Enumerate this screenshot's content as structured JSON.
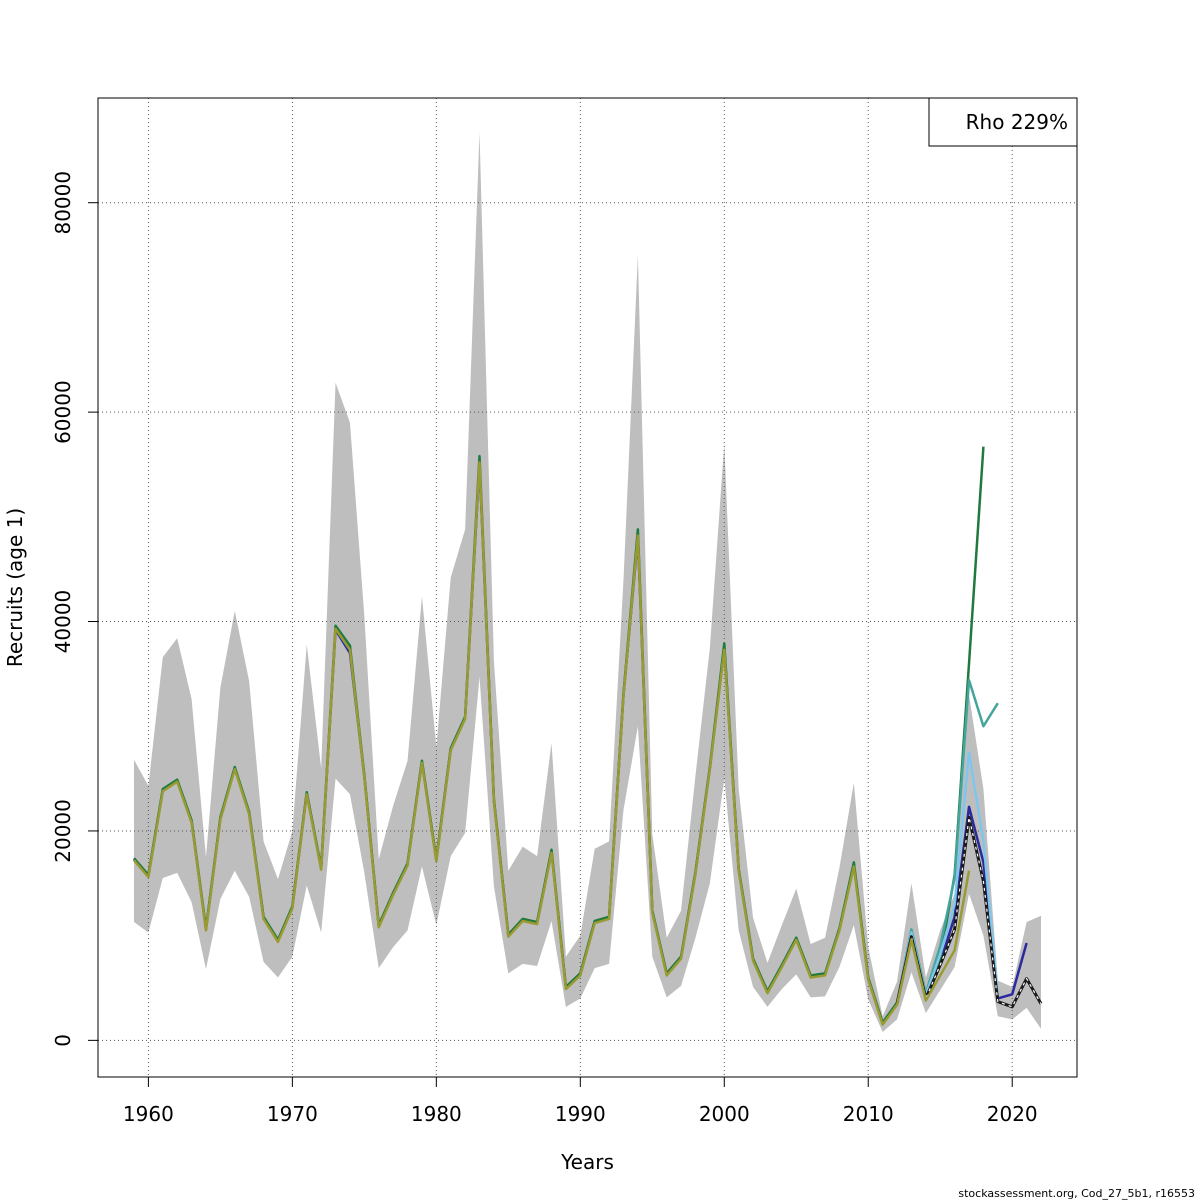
{
  "chart_data": {
    "type": "line",
    "title": "",
    "xlabel": "Years",
    "ylabel": "Recruits (age 1)",
    "xlim": [
      1956.5,
      2024.5
    ],
    "ylim": [
      -3500,
      90000
    ],
    "xticks": [
      1960,
      1970,
      1980,
      1990,
      2000,
      2010,
      2020
    ],
    "yticks": [
      0,
      20000,
      40000,
      60000,
      80000
    ],
    "grid": true,
    "legend": {
      "position": "top-right",
      "text": "Rho 229%"
    },
    "credit": "stockassessment.org, Cod_27_5b1, r16553",
    "confidence_band": {
      "x": [
        1959,
        1960,
        1961,
        1962,
        1963,
        1964,
        1965,
        1966,
        1967,
        1968,
        1969,
        1970,
        1971,
        1972,
        1973,
        1974,
        1975,
        1976,
        1977,
        1978,
        1979,
        1980,
        1981,
        1982,
        1983,
        1984,
        1985,
        1986,
        1987,
        1988,
        1989,
        1990,
        1991,
        1992,
        1993,
        1994,
        1995,
        1996,
        1997,
        1998,
        1999,
        2000,
        2001,
        2002,
        2003,
        2004,
        2005,
        2006,
        2007,
        2008,
        2009,
        2010,
        2011,
        2012,
        2013,
        2014,
        2015,
        2016,
        2017,
        2018,
        2019,
        2020,
        2021,
        2022
      ],
      "lower": [
        11300,
        10300,
        15500,
        16000,
        13200,
        6800,
        13500,
        16200,
        13700,
        7500,
        6000,
        8000,
        14800,
        10300,
        25000,
        23500,
        16000,
        6900,
        8900,
        10500,
        16600,
        11000,
        17600,
        19800,
        34700,
        14700,
        6400,
        7300,
        7100,
        11400,
        3200,
        4000,
        6900,
        7300,
        22000,
        30000,
        8000,
        4100,
        5200,
        9800,
        15000,
        25000,
        10500,
        5100,
        3200,
        4900,
        6300,
        4100,
        4200,
        7000,
        11000,
        3900,
        800,
        2000,
        6500,
        2600,
        4800,
        7000,
        14000,
        10000,
        2300,
        2000,
        3100,
        1100
      ],
      "upper": [
        26800,
        24300,
        36600,
        38400,
        32600,
        17500,
        33700,
        41000,
        34300,
        19000,
        15400,
        20000,
        37800,
        26000,
        62800,
        59000,
        40500,
        17300,
        22400,
        26700,
        42400,
        28000,
        44200,
        48800,
        86700,
        36200,
        16200,
        18500,
        17600,
        28400,
        8000,
        10000,
        18300,
        19000,
        44000,
        75000,
        19700,
        9800,
        12400,
        25300,
        37500,
        57000,
        24000,
        11700,
        7400,
        11000,
        14500,
        9200,
        9800,
        16500,
        24600,
        8900,
        2300,
        5600,
        15000,
        6000,
        10500,
        14000,
        33000,
        24000,
        5700,
        5100,
        11300,
        11900
      ]
    },
    "series": [
      {
        "color": "#2a2a9e",
        "x": [
          1959,
          1960,
          1961,
          1962,
          1963,
          1964,
          1965,
          1966,
          1967,
          1968,
          1969,
          1970,
          1971,
          1972,
          1973,
          1974,
          1975,
          1976,
          1977,
          1978,
          1979,
          1980,
          1981,
          1982,
          1983,
          1984,
          1985,
          1986,
          1987,
          1988,
          1989,
          1990,
          1991,
          1992,
          1993,
          1994,
          1995,
          1996,
          1997,
          1998,
          1999,
          2000,
          2001,
          2002,
          2003,
          2004,
          2005,
          2006,
          2007,
          2008,
          2009,
          2010,
          2011,
          2012,
          2013,
          2014,
          2015,
          2016,
          2017,
          2018,
          2019,
          2020,
          2021
        ],
        "y": [
          17300,
          15700,
          23900,
          24800,
          20900,
          10600,
          21200,
          26000,
          21700,
          11700,
          9500,
          12700,
          23600,
          16400,
          39200,
          37000,
          25200,
          10900,
          14000,
          16800,
          26600,
          17200,
          27800,
          30800,
          55000,
          22900,
          10000,
          11500,
          11200,
          18000,
          5000,
          6300,
          11300,
          11700,
          33000,
          48000,
          12300,
          6300,
          7900,
          16000,
          26000,
          37500,
          16300,
          7700,
          4600,
          7100,
          9700,
          6100,
          6300,
          10600,
          16800,
          5900,
          1600,
          3500,
          10000,
          4100,
          7400,
          11800,
          22300,
          17000,
          4000,
          4400,
          9300
        ]
      },
      {
        "color": "#1f7a3d",
        "x": [
          1959,
          1960,
          1961,
          1962,
          1963,
          1964,
          1965,
          1966,
          1967,
          1968,
          1969,
          1970,
          1971,
          1972,
          1973,
          1974,
          1975,
          1976,
          1977,
          1978,
          1979,
          1980,
          1981,
          1982,
          1983,
          1984,
          1985,
          1986,
          1987,
          1988,
          1989,
          1990,
          1991,
          1992,
          1993,
          1994,
          1995,
          1996,
          1997,
          1998,
          1999,
          2000,
          2001,
          2002,
          2003,
          2004,
          2005,
          2006,
          2007,
          2008,
          2009,
          2010,
          2011,
          2012,
          2013,
          2014,
          2015,
          2016,
          2017,
          2018
        ],
        "y": [
          17400,
          15800,
          24000,
          24900,
          21000,
          10700,
          21300,
          26100,
          21800,
          11800,
          9600,
          12800,
          23700,
          16500,
          39600,
          37700,
          25300,
          11000,
          14100,
          16900,
          26700,
          17300,
          27900,
          30900,
          55800,
          23000,
          10100,
          11600,
          11300,
          18200,
          5100,
          6400,
          11400,
          11800,
          33100,
          48800,
          12400,
          6400,
          8000,
          16100,
          26100,
          37900,
          16400,
          7800,
          4700,
          7200,
          9800,
          6200,
          6400,
          10700,
          17000,
          6000,
          1700,
          3600,
          10400,
          4300,
          7800,
          15800,
          36000,
          56700
        ]
      },
      {
        "color": "#45a49c",
        "x": [
          2012,
          2013,
          2014,
          2015,
          2016,
          2017,
          2018,
          2019
        ],
        "y": [
          3600,
          10600,
          4500,
          9000,
          15500,
          34400,
          30000,
          32200
        ]
      },
      {
        "color": "#7fc6ee",
        "x": [
          2012,
          2013,
          2014,
          2015,
          2016,
          2017,
          2018,
          2019
        ],
        "y": [
          3600,
          10300,
          4300,
          8200,
          13000,
          27500,
          19000,
          4300
        ]
      },
      {
        "color": "#1a1a1a",
        "dashed": true,
        "x": [
          2012,
          2013,
          2014,
          2015,
          2016,
          2017,
          2018,
          2019,
          2020,
          2021,
          2022
        ],
        "y": [
          3500,
          9900,
          4000,
          7200,
          10600,
          21300,
          15200,
          3700,
          3200,
          5900,
          3500
        ]
      },
      {
        "color": "#9a9a32",
        "x": [
          1959,
          1960,
          1961,
          1962,
          1963,
          1964,
          1965,
          1966,
          1967,
          1968,
          1969,
          1970,
          1971,
          1972,
          1973,
          1974,
          1975,
          1976,
          1977,
          1978,
          1979,
          1980,
          1981,
          1982,
          1983,
          1984,
          1985,
          1986,
          1987,
          1988,
          1989,
          1990,
          1991,
          1992,
          1993,
          1994,
          1995,
          1996,
          1997,
          1998,
          1999,
          2000,
          2001,
          2002,
          2003,
          2004,
          2005,
          2006,
          2007,
          2008,
          2009,
          2010,
          2011,
          2012,
          2013,
          2014,
          2015,
          2016,
          2017
        ],
        "y": [
          17200,
          15600,
          23800,
          24700,
          20800,
          10500,
          21100,
          25900,
          21600,
          11600,
          9400,
          12600,
          23500,
          16300,
          39300,
          37300,
          25100,
          10800,
          13900,
          16700,
          26500,
          17100,
          27700,
          30700,
          55200,
          22800,
          9900,
          11400,
          11100,
          17900,
          4900,
          6200,
          11200,
          11600,
          32900,
          48200,
          12200,
          6200,
          7800,
          15900,
          25900,
          37300,
          16200,
          7600,
          4500,
          7000,
          9600,
          6000,
          6200,
          10500,
          16600,
          5800,
          1500,
          3400,
          9600,
          3800,
          6200,
          8600,
          16200
        ]
      }
    ]
  }
}
